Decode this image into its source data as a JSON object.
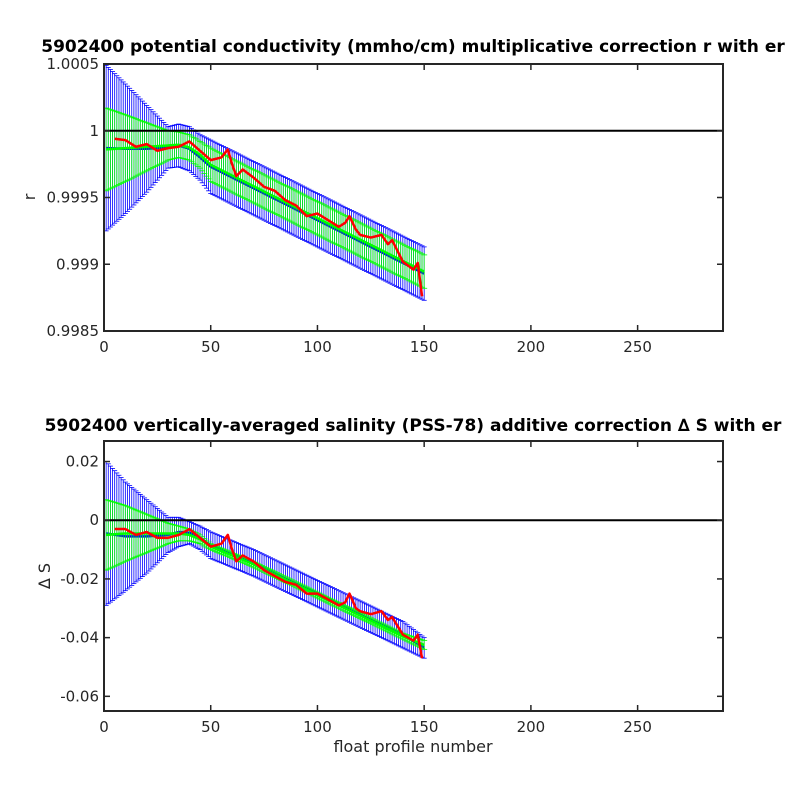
{
  "chart_data": [
    {
      "type": "line",
      "title": "5902400 potential conductivity (mmho/cm) multiplicative correction r with er",
      "xlabel": "",
      "ylabel": "r",
      "xlim": [
        0,
        290
      ],
      "ylim": [
        0.9985,
        1.0005
      ],
      "xticks": [
        0,
        50,
        100,
        150,
        200,
        250
      ],
      "xtick_labels": [
        "0",
        "50",
        "100",
        "150",
        "200",
        "250"
      ],
      "yticks": [
        0.9985,
        0.999,
        0.9995,
        1,
        1.0005
      ],
      "ytick_labels": [
        "0.9985",
        "0.999",
        "0.9995",
        "1",
        "1.0005"
      ],
      "reference_line": 1,
      "series": [
        {
          "role": "error-envelope-blue",
          "color": "#0000ff",
          "x": [
            1,
            10,
            20,
            30,
            35,
            40,
            45,
            50,
            60,
            70,
            80,
            90,
            100,
            110,
            120,
            130,
            140,
            150
          ],
          "upper": [
            1.00049,
            1.00035,
            1.00019,
            1.00003,
            1.00005,
            1.00003,
            0.99997,
            0.99993,
            0.99985,
            0.99977,
            0.99969,
            0.99961,
            0.99953,
            0.99945,
            0.99937,
            0.99929,
            0.99921,
            0.99913
          ],
          "lower": [
            0.99925,
            0.99938,
            0.99954,
            0.99972,
            0.99973,
            0.9997,
            0.99963,
            0.99953,
            0.99945,
            0.99937,
            0.99929,
            0.99921,
            0.99913,
            0.99905,
            0.99897,
            0.99889,
            0.99881,
            0.99873
          ]
        },
        {
          "role": "error-envelope-green",
          "color": "#00ff00",
          "x": [
            1,
            10,
            20,
            30,
            35,
            40,
            45,
            50,
            60,
            70,
            80,
            90,
            100,
            110,
            120,
            130,
            140,
            150
          ],
          "upper": [
            1.00017,
            1.00012,
            1.00006,
            1.0,
            0.99999,
            0.99997,
            0.99992,
            0.99987,
            0.99979,
            0.99971,
            0.99963,
            0.99955,
            0.99947,
            0.99939,
            0.99931,
            0.99923,
            0.99915,
            0.99907
          ],
          "lower": [
            0.99955,
            0.99962,
            0.9997,
            0.99978,
            0.9998,
            0.99978,
            0.99972,
            0.99962,
            0.99954,
            0.99946,
            0.99938,
            0.9993,
            0.99922,
            0.99914,
            0.99906,
            0.99898,
            0.9989,
            0.99882
          ]
        },
        {
          "role": "correction",
          "color": "#ff0000",
          "x": [
            5,
            10,
            15,
            20,
            25,
            30,
            35,
            40,
            45,
            50,
            55,
            58,
            60,
            62,
            65,
            70,
            75,
            80,
            85,
            90,
            95,
            100,
            105,
            110,
            113,
            115,
            118,
            120,
            125,
            130,
            133,
            135,
            140,
            145,
            147,
            149
          ],
          "y": [
            0.99994,
            0.99993,
            0.99988,
            0.9999,
            0.99985,
            0.99987,
            0.99988,
            0.99992,
            0.99985,
            0.99978,
            0.9998,
            0.99986,
            0.99975,
            0.99966,
            0.99971,
            0.99965,
            0.99958,
            0.99955,
            0.99948,
            0.99944,
            0.99936,
            0.99938,
            0.99933,
            0.99928,
            0.99931,
            0.99936,
            0.99926,
            0.99922,
            0.9992,
            0.99922,
            0.99915,
            0.99918,
            0.99902,
            0.99896,
            0.99901,
            0.99876
          ]
        }
      ]
    },
    {
      "type": "line",
      "title": "5902400 vertically-averaged salinity (PSS-78) additive correction ∆ S with er",
      "xlabel": "float profile number",
      "ylabel": "∆ S",
      "xlim": [
        0,
        290
      ],
      "ylim": [
        -0.065,
        0.027
      ],
      "xticks": [
        0,
        50,
        100,
        150,
        200,
        250
      ],
      "xtick_labels": [
        "0",
        "50",
        "100",
        "150",
        "200",
        "250"
      ],
      "yticks": [
        -0.06,
        -0.04,
        -0.02,
        0,
        0.02
      ],
      "ytick_labels": [
        "-0.06",
        "-0.04",
        "-0.02",
        "0",
        "0.02"
      ],
      "reference_line": 0,
      "series": [
        {
          "role": "error-envelope-blue",
          "color": "#0000ff",
          "x": [
            1,
            10,
            20,
            30,
            35,
            40,
            45,
            50,
            60,
            70,
            80,
            90,
            100,
            110,
            120,
            130,
            140,
            150
          ],
          "upper": [
            0.02,
            0.013,
            0.007,
            0.001,
            0.001,
            -0.0005,
            -0.002,
            -0.004,
            -0.007,
            -0.01,
            -0.0135,
            -0.017,
            -0.0205,
            -0.024,
            -0.0275,
            -0.031,
            -0.0345,
            -0.04
          ],
          "lower": [
            -0.029,
            -0.024,
            -0.018,
            -0.011,
            -0.009,
            -0.008,
            -0.01,
            -0.013,
            -0.016,
            -0.019,
            -0.0225,
            -0.026,
            -0.0295,
            -0.033,
            -0.0365,
            -0.04,
            -0.0435,
            -0.047
          ]
        },
        {
          "role": "error-envelope-green",
          "color": "#00ff00",
          "x": [
            1,
            10,
            20,
            30,
            35,
            40,
            45,
            50,
            60,
            70,
            80,
            90,
            100,
            110,
            120,
            130,
            140,
            150
          ],
          "upper": [
            0.007,
            0.005,
            0.002,
            -0.001,
            -0.002,
            -0.003,
            -0.005,
            -0.008,
            -0.011,
            -0.014,
            -0.0175,
            -0.021,
            -0.0245,
            -0.028,
            -0.0315,
            -0.035,
            -0.0385,
            -0.041
          ],
          "lower": [
            -0.017,
            -0.014,
            -0.011,
            -0.008,
            -0.007,
            -0.007,
            -0.008,
            -0.01,
            -0.013,
            -0.016,
            -0.0195,
            -0.023,
            -0.0265,
            -0.03,
            -0.0335,
            -0.037,
            -0.0405,
            -0.044
          ]
        },
        {
          "role": "correction",
          "color": "#ff0000",
          "x": [
            5,
            10,
            15,
            20,
            25,
            30,
            35,
            40,
            45,
            50,
            55,
            58,
            60,
            62,
            65,
            70,
            75,
            80,
            85,
            90,
            95,
            100,
            105,
            110,
            113,
            115,
            118,
            120,
            125,
            130,
            133,
            135,
            140,
            145,
            147,
            149
          ],
          "y": [
            -0.003,
            -0.003,
            -0.005,
            -0.004,
            -0.006,
            -0.006,
            -0.005,
            -0.003,
            -0.006,
            -0.009,
            -0.008,
            -0.005,
            -0.01,
            -0.014,
            -0.012,
            -0.014,
            -0.017,
            -0.019,
            -0.021,
            -0.022,
            -0.025,
            -0.025,
            -0.027,
            -0.029,
            -0.028,
            -0.025,
            -0.03,
            -0.031,
            -0.032,
            -0.031,
            -0.034,
            -0.033,
            -0.039,
            -0.041,
            -0.039,
            -0.047
          ]
        }
      ]
    }
  ]
}
